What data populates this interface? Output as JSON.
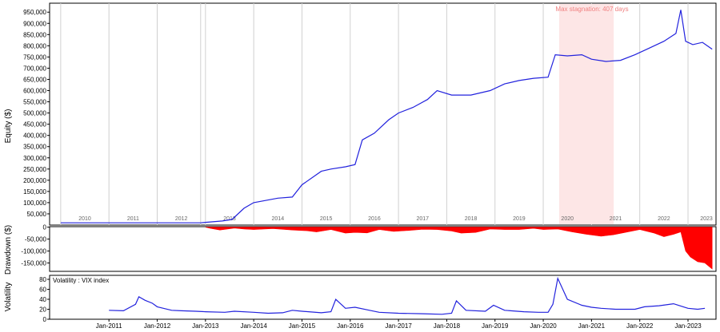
{
  "chart_data": [
    {
      "type": "line",
      "panel": "equity",
      "ylabel": "Equity ($)",
      "yticks": [
        50000,
        100000,
        150000,
        200000,
        250000,
        300000,
        350000,
        400000,
        450000,
        500000,
        550000,
        600000,
        650000,
        700000,
        750000,
        800000,
        850000,
        900000,
        950000
      ],
      "ytick_labels": [
        "50,000",
        "100,000",
        "150,000",
        "200,000",
        "250,000",
        "300,000",
        "350,000",
        "400,000",
        "450,000",
        "500,000",
        "550,000",
        "600,000",
        "650,000",
        "700,000",
        "750,000",
        "800,000",
        "850,000",
        "900,000",
        "950,000"
      ],
      "ylim": [
        0,
        990000
      ],
      "year_labels": [
        "2010",
        "2011",
        "2012",
        "2013",
        "2014",
        "2015",
        "2016",
        "2017",
        "2018",
        "2019",
        "2020",
        "2021",
        "2022",
        "2023"
      ],
      "annotation": "Max stagnation: 407 days",
      "stagnation_period": [
        "2020-05",
        "2021-06"
      ],
      "series": [
        {
          "color": "#2222dd",
          "x": [
            2010.0,
            2011.0,
            2012.0,
            2012.9,
            2013.0,
            2013.35,
            2013.55,
            2013.8,
            2014.0,
            2014.5,
            2014.8,
            2015.0,
            2015.4,
            2015.6,
            2015.9,
            2016.1,
            2016.25,
            2016.5,
            2016.8,
            2017.0,
            2017.3,
            2017.6,
            2017.8,
            2018.1,
            2018.5,
            2018.9,
            2019.2,
            2019.5,
            2019.8,
            2020.1,
            2020.25,
            2020.5,
            2020.8,
            2021.0,
            2021.3,
            2021.6,
            2021.9,
            2022.2,
            2022.5,
            2022.75,
            2022.85,
            2022.95,
            2023.1,
            2023.3,
            2023.5
          ],
          "y": [
            10000,
            10000,
            10000,
            10000,
            12000,
            18000,
            25000,
            75000,
            100000,
            120000,
            125000,
            180000,
            240000,
            250000,
            260000,
            270000,
            380000,
            410000,
            470000,
            500000,
            525000,
            560000,
            600000,
            580000,
            580000,
            600000,
            630000,
            645000,
            655000,
            660000,
            760000,
            755000,
            760000,
            740000,
            730000,
            735000,
            760000,
            790000,
            820000,
            855000,
            960000,
            820000,
            805000,
            815000,
            785000
          ]
        }
      ]
    },
    {
      "type": "area",
      "panel": "drawdown",
      "ylabel": "Drawdown ($)",
      "yticks": [
        0,
        -50000,
        -100000,
        -150000
      ],
      "ytick_labels": [
        "0",
        "-50,000",
        "-100,000",
        "-150,000"
      ],
      "ylim": [
        -185000,
        2000
      ],
      "series": [
        {
          "color": "#ff0000",
          "x": [
            2013.0,
            2013.1,
            2013.3,
            2013.6,
            2013.8,
            2014.0,
            2014.4,
            2014.8,
            2015.1,
            2015.3,
            2015.6,
            2015.9,
            2016.1,
            2016.35,
            2016.6,
            2016.9,
            2017.2,
            2017.5,
            2017.8,
            2018.1,
            2018.3,
            2018.6,
            2018.9,
            2019.2,
            2019.5,
            2019.8,
            2020.0,
            2020.3,
            2020.6,
            2020.9,
            2021.2,
            2021.45,
            2021.7,
            2022.0,
            2022.3,
            2022.5,
            2022.7,
            2022.85,
            2022.95,
            2023.05,
            2023.2,
            2023.35,
            2023.5
          ],
          "y": [
            0,
            -5000,
            -12000,
            -4000,
            -8000,
            -10000,
            -6000,
            -12000,
            -15000,
            -20000,
            -10000,
            -25000,
            -22000,
            -24000,
            -10000,
            -18000,
            -14000,
            -9000,
            -10000,
            -16000,
            -25000,
            -22000,
            -8000,
            -10000,
            -10000,
            -5000,
            -10000,
            -8000,
            -20000,
            -30000,
            -38000,
            -32000,
            -22000,
            -10000,
            -25000,
            -40000,
            -30000,
            -20000,
            -100000,
            -125000,
            -145000,
            -150000,
            -175000
          ]
        }
      ]
    },
    {
      "type": "line",
      "panel": "volatility",
      "ylabel": "Volatility",
      "legend": "Volatility : VIX index",
      "yticks": [
        0,
        20,
        40,
        60,
        80
      ],
      "ytick_labels": [
        "0",
        "20",
        "40",
        "60",
        "80"
      ],
      "ylim": [
        0,
        88
      ],
      "xtick_labels": [
        "Jan-2011",
        "Jan-2012",
        "Jan-2013",
        "Jan-2014",
        "Jan-2015",
        "Jan-2016",
        "Jan-2017",
        "Jan-2018",
        "Jan-2019",
        "Jan-2020",
        "Jan-2021",
        "Jan-2022",
        "Jan-2023"
      ],
      "series": [
        {
          "color": "#2222dd",
          "x": [
            2011.0,
            2011.3,
            2011.55,
            2011.62,
            2011.75,
            2011.9,
            2012.0,
            2012.3,
            2012.5,
            2012.8,
            2013.0,
            2013.4,
            2013.6,
            2014.0,
            2014.3,
            2014.6,
            2014.8,
            2015.0,
            2015.4,
            2015.6,
            2015.7,
            2015.9,
            2016.1,
            2016.4,
            2016.6,
            2017.0,
            2017.5,
            2017.9,
            2018.1,
            2018.2,
            2018.4,
            2018.8,
            2018.97,
            2019.2,
            2019.6,
            2019.9,
            2020.1,
            2020.2,
            2020.3,
            2020.5,
            2020.8,
            2021.0,
            2021.2,
            2021.5,
            2021.9,
            2022.1,
            2022.4,
            2022.7,
            2022.9,
            2023.0,
            2023.2,
            2023.35
          ],
          "y": [
            18,
            17,
            30,
            45,
            38,
            32,
            25,
            18,
            17,
            16,
            15,
            14,
            16,
            14,
            12,
            13,
            18,
            16,
            13,
            15,
            40,
            22,
            24,
            18,
            14,
            12,
            11,
            10,
            12,
            37,
            18,
            16,
            28,
            18,
            15,
            14,
            14,
            30,
            82,
            40,
            28,
            24,
            22,
            20,
            20,
            25,
            27,
            31,
            25,
            22,
            20,
            22
          ]
        }
      ]
    }
  ]
}
